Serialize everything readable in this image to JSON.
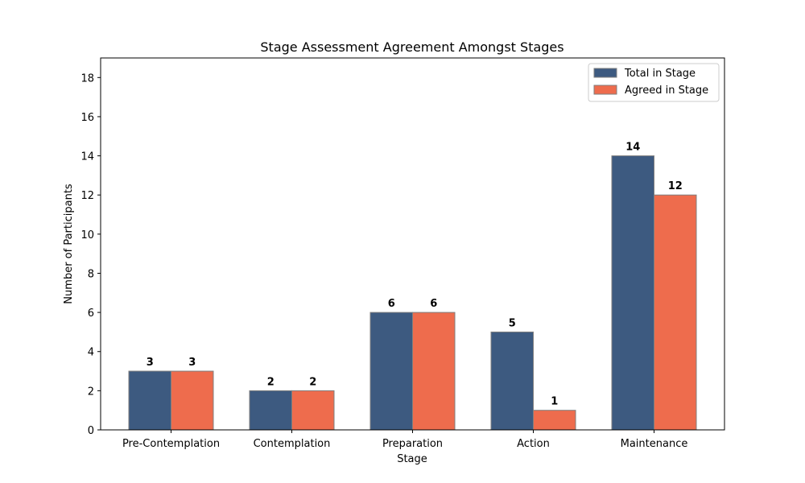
{
  "chart_data": {
    "type": "bar",
    "title": "Stage Assessment Agreement Amongst Stages",
    "xlabel": "Stage",
    "ylabel": "Number of Participants",
    "categories": [
      "Pre-Contemplation",
      "Contemplation",
      "Preparation",
      "Action",
      "Maintenance"
    ],
    "series": [
      {
        "name": "Total in Stage",
        "values": [
          3,
          2,
          6,
          5,
          14
        ],
        "color": "#3d5a80"
      },
      {
        "name": "Agreed in Stage",
        "values": [
          3,
          2,
          6,
          1,
          12
        ],
        "color": "#ee6c4d"
      }
    ],
    "ylim": [
      0,
      19
    ],
    "yticks": [
      0,
      2,
      4,
      6,
      8,
      10,
      12,
      14,
      16,
      18
    ],
    "grid": false,
    "legend_position": "top-right",
    "data_labels": true
  }
}
